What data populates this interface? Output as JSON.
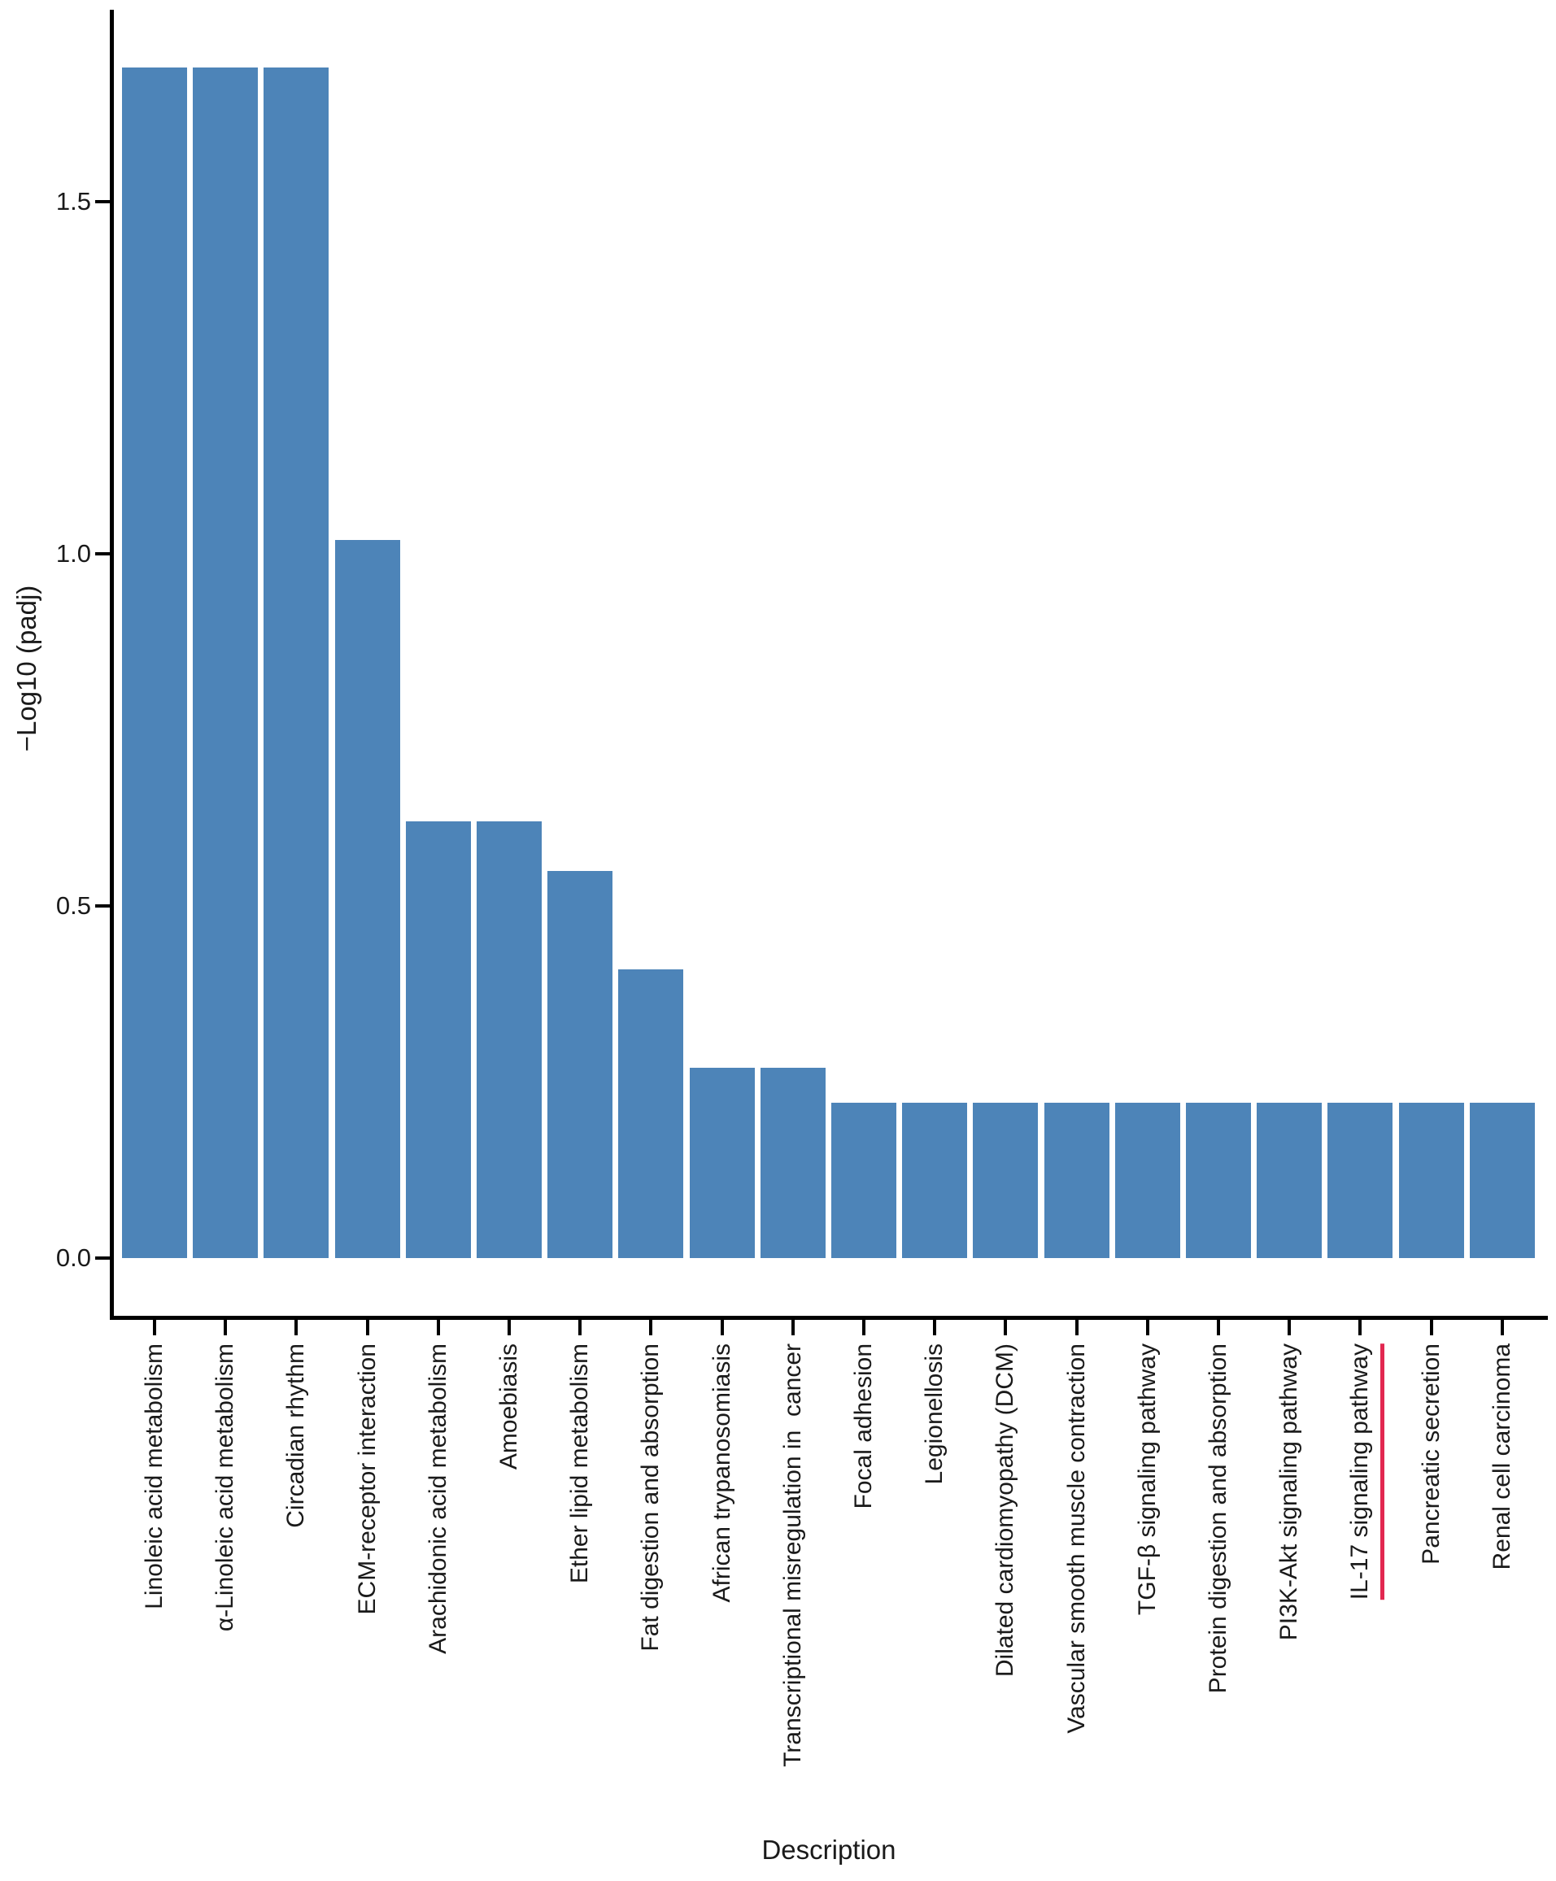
{
  "chart_data": {
    "type": "bar",
    "title": "",
    "xlabel": "Description",
    "ylabel": "−Log10 (padj)",
    "ylim": [
      0,
      1.76
    ],
    "yticks": [
      "0.0",
      "0.5",
      "1.0",
      "1.5"
    ],
    "grid": false,
    "legend_position": "none",
    "bar_color": "#4d84b8",
    "axis_color": "#000000",
    "highlight_color": "#e22850",
    "categories": [
      "Linoleic acid metabolism",
      "α-Linoleic acid metabolism",
      "Circadian rhythm",
      "ECM-receptor interaction",
      "Arachidonic acid metabolism",
      "Amoebiasis",
      "Ether lipid metabolism",
      "Fat digestion and absorption",
      "African trypanosomiasis",
      "Transcriptional misregulation in  cancer",
      "Focal adhesion",
      "Legionellosis",
      "Dilated cardiomyopathy (DCM)",
      "Vascular smooth muscle contraction",
      "TGF-β signaling pathway",
      "Protein digestion and absorption",
      "PI3K-Akt signaling pathway",
      "IL-17 signaling pathway",
      "Pancreatic secretion",
      "Renal cell carcinoma"
    ],
    "values": [
      1.69,
      1.69,
      1.69,
      1.02,
      0.62,
      0.62,
      0.55,
      0.41,
      0.27,
      0.27,
      0.22,
      0.22,
      0.22,
      0.22,
      0.22,
      0.22,
      0.22,
      0.22,
      0.22,
      0.22
    ],
    "highlighted_category": "IL-17 signaling pathway",
    "highlight_note": "red underline along the IL-17 signaling pathway axis label"
  }
}
